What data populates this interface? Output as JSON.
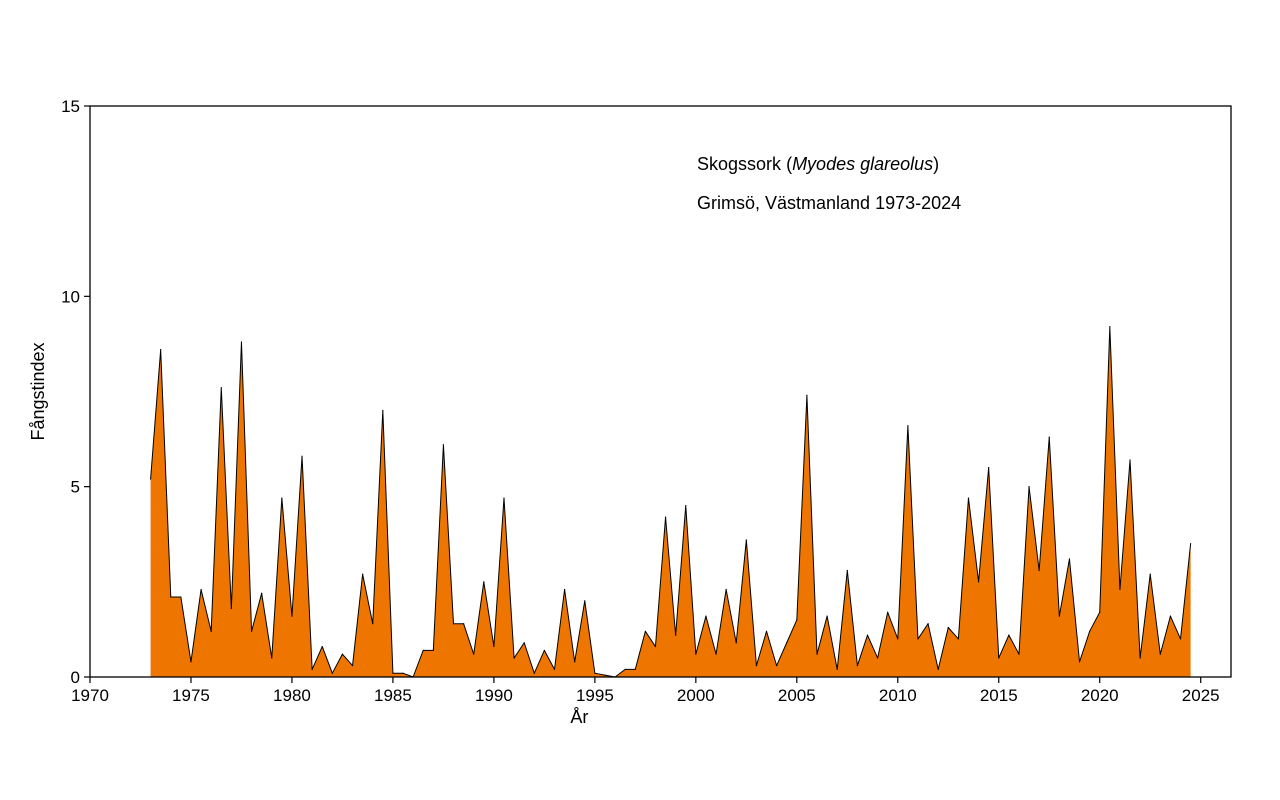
{
  "chart_data": {
    "type": "area",
    "annotation": {
      "species_common": "Skogssork",
      "species_latin": "Myodes glareolus",
      "paren_open": "(",
      "paren_close": ")",
      "location": "Grimsö, Västmanland 1973-2024"
    },
    "xlabel": "År",
    "ylabel": "Fångstindex",
    "xlim": [
      1970,
      2026.5
    ],
    "ylim": [
      0,
      15
    ],
    "xticks": [
      1970,
      1975,
      1980,
      1985,
      1990,
      1995,
      2000,
      2005,
      2010,
      2015,
      2020,
      2025
    ],
    "yticks": [
      0,
      5,
      10,
      15
    ],
    "fill_color": "#ee7600",
    "line_color": "#000000",
    "grid": false,
    "series": [
      {
        "points": [
          [
            1973.0,
            5.2
          ],
          [
            1973.5,
            8.6
          ],
          [
            1974.0,
            2.1
          ],
          [
            1974.5,
            2.1
          ],
          [
            1975.0,
            0.4
          ],
          [
            1975.5,
            2.3
          ],
          [
            1976.0,
            1.2
          ],
          [
            1976.5,
            7.6
          ],
          [
            1977.0,
            1.8
          ],
          [
            1977.5,
            8.8
          ],
          [
            1978.0,
            1.2
          ],
          [
            1978.5,
            2.2
          ],
          [
            1979.0,
            0.5
          ],
          [
            1979.5,
            4.7
          ],
          [
            1980.0,
            1.6
          ],
          [
            1980.5,
            5.8
          ],
          [
            1981.0,
            0.2
          ],
          [
            1981.5,
            0.8
          ],
          [
            1982.0,
            0.1
          ],
          [
            1982.5,
            0.6
          ],
          [
            1983.0,
            0.3
          ],
          [
            1983.5,
            2.7
          ],
          [
            1984.0,
            1.4
          ],
          [
            1984.5,
            7.0
          ],
          [
            1985.0,
            0.1
          ],
          [
            1985.5,
            0.1
          ],
          [
            1986.0,
            0.0
          ],
          [
            1986.5,
            0.7
          ],
          [
            1987.0,
            0.7
          ],
          [
            1987.5,
            6.1
          ],
          [
            1988.0,
            1.4
          ],
          [
            1988.5,
            1.4
          ],
          [
            1989.0,
            0.6
          ],
          [
            1989.5,
            2.5
          ],
          [
            1990.0,
            0.8
          ],
          [
            1990.5,
            4.7
          ],
          [
            1991.0,
            0.5
          ],
          [
            1991.5,
            0.9
          ],
          [
            1992.0,
            0.1
          ],
          [
            1992.5,
            0.7
          ],
          [
            1993.0,
            0.2
          ],
          [
            1993.5,
            2.3
          ],
          [
            1994.0,
            0.4
          ],
          [
            1994.5,
            2.0
          ],
          [
            1995.0,
            0.1
          ],
          [
            1995.5,
            0.05
          ],
          [
            1996.0,
            0.0
          ],
          [
            1996.5,
            0.2
          ],
          [
            1997.0,
            0.2
          ],
          [
            1997.5,
            1.2
          ],
          [
            1998.0,
            0.8
          ],
          [
            1998.5,
            4.2
          ],
          [
            1999.0,
            1.1
          ],
          [
            1999.5,
            4.5
          ],
          [
            2000.0,
            0.6
          ],
          [
            2000.5,
            1.6
          ],
          [
            2001.0,
            0.6
          ],
          [
            2001.5,
            2.3
          ],
          [
            2002.0,
            0.9
          ],
          [
            2002.5,
            3.6
          ],
          [
            2003.0,
            0.3
          ],
          [
            2003.5,
            1.2
          ],
          [
            2004.0,
            0.3
          ],
          [
            2004.5,
            0.9
          ],
          [
            2005.0,
            1.5
          ],
          [
            2005.5,
            7.4
          ],
          [
            2006.0,
            0.6
          ],
          [
            2006.5,
            1.6
          ],
          [
            2007.0,
            0.2
          ],
          [
            2007.5,
            2.8
          ],
          [
            2008.0,
            0.3
          ],
          [
            2008.5,
            1.1
          ],
          [
            2009.0,
            0.5
          ],
          [
            2009.5,
            1.7
          ],
          [
            2010.0,
            1.0
          ],
          [
            2010.5,
            6.6
          ],
          [
            2011.0,
            1.0
          ],
          [
            2011.5,
            1.4
          ],
          [
            2012.0,
            0.2
          ],
          [
            2012.5,
            1.3
          ],
          [
            2013.0,
            1.0
          ],
          [
            2013.5,
            4.7
          ],
          [
            2014.0,
            2.5
          ],
          [
            2014.5,
            5.5
          ],
          [
            2015.0,
            0.5
          ],
          [
            2015.5,
            1.1
          ],
          [
            2016.0,
            0.6
          ],
          [
            2016.5,
            5.0
          ],
          [
            2017.0,
            2.8
          ],
          [
            2017.5,
            6.3
          ],
          [
            2018.0,
            1.6
          ],
          [
            2018.5,
            3.1
          ],
          [
            2019.0,
            0.4
          ],
          [
            2019.5,
            1.2
          ],
          [
            2020.0,
            1.7
          ],
          [
            2020.5,
            9.2
          ],
          [
            2021.0,
            2.3
          ],
          [
            2021.5,
            5.7
          ],
          [
            2022.0,
            0.5
          ],
          [
            2022.5,
            2.7
          ],
          [
            2023.0,
            0.6
          ],
          [
            2023.5,
            1.6
          ],
          [
            2024.0,
            1.0
          ],
          [
            2024.5,
            3.5
          ]
        ]
      }
    ]
  }
}
